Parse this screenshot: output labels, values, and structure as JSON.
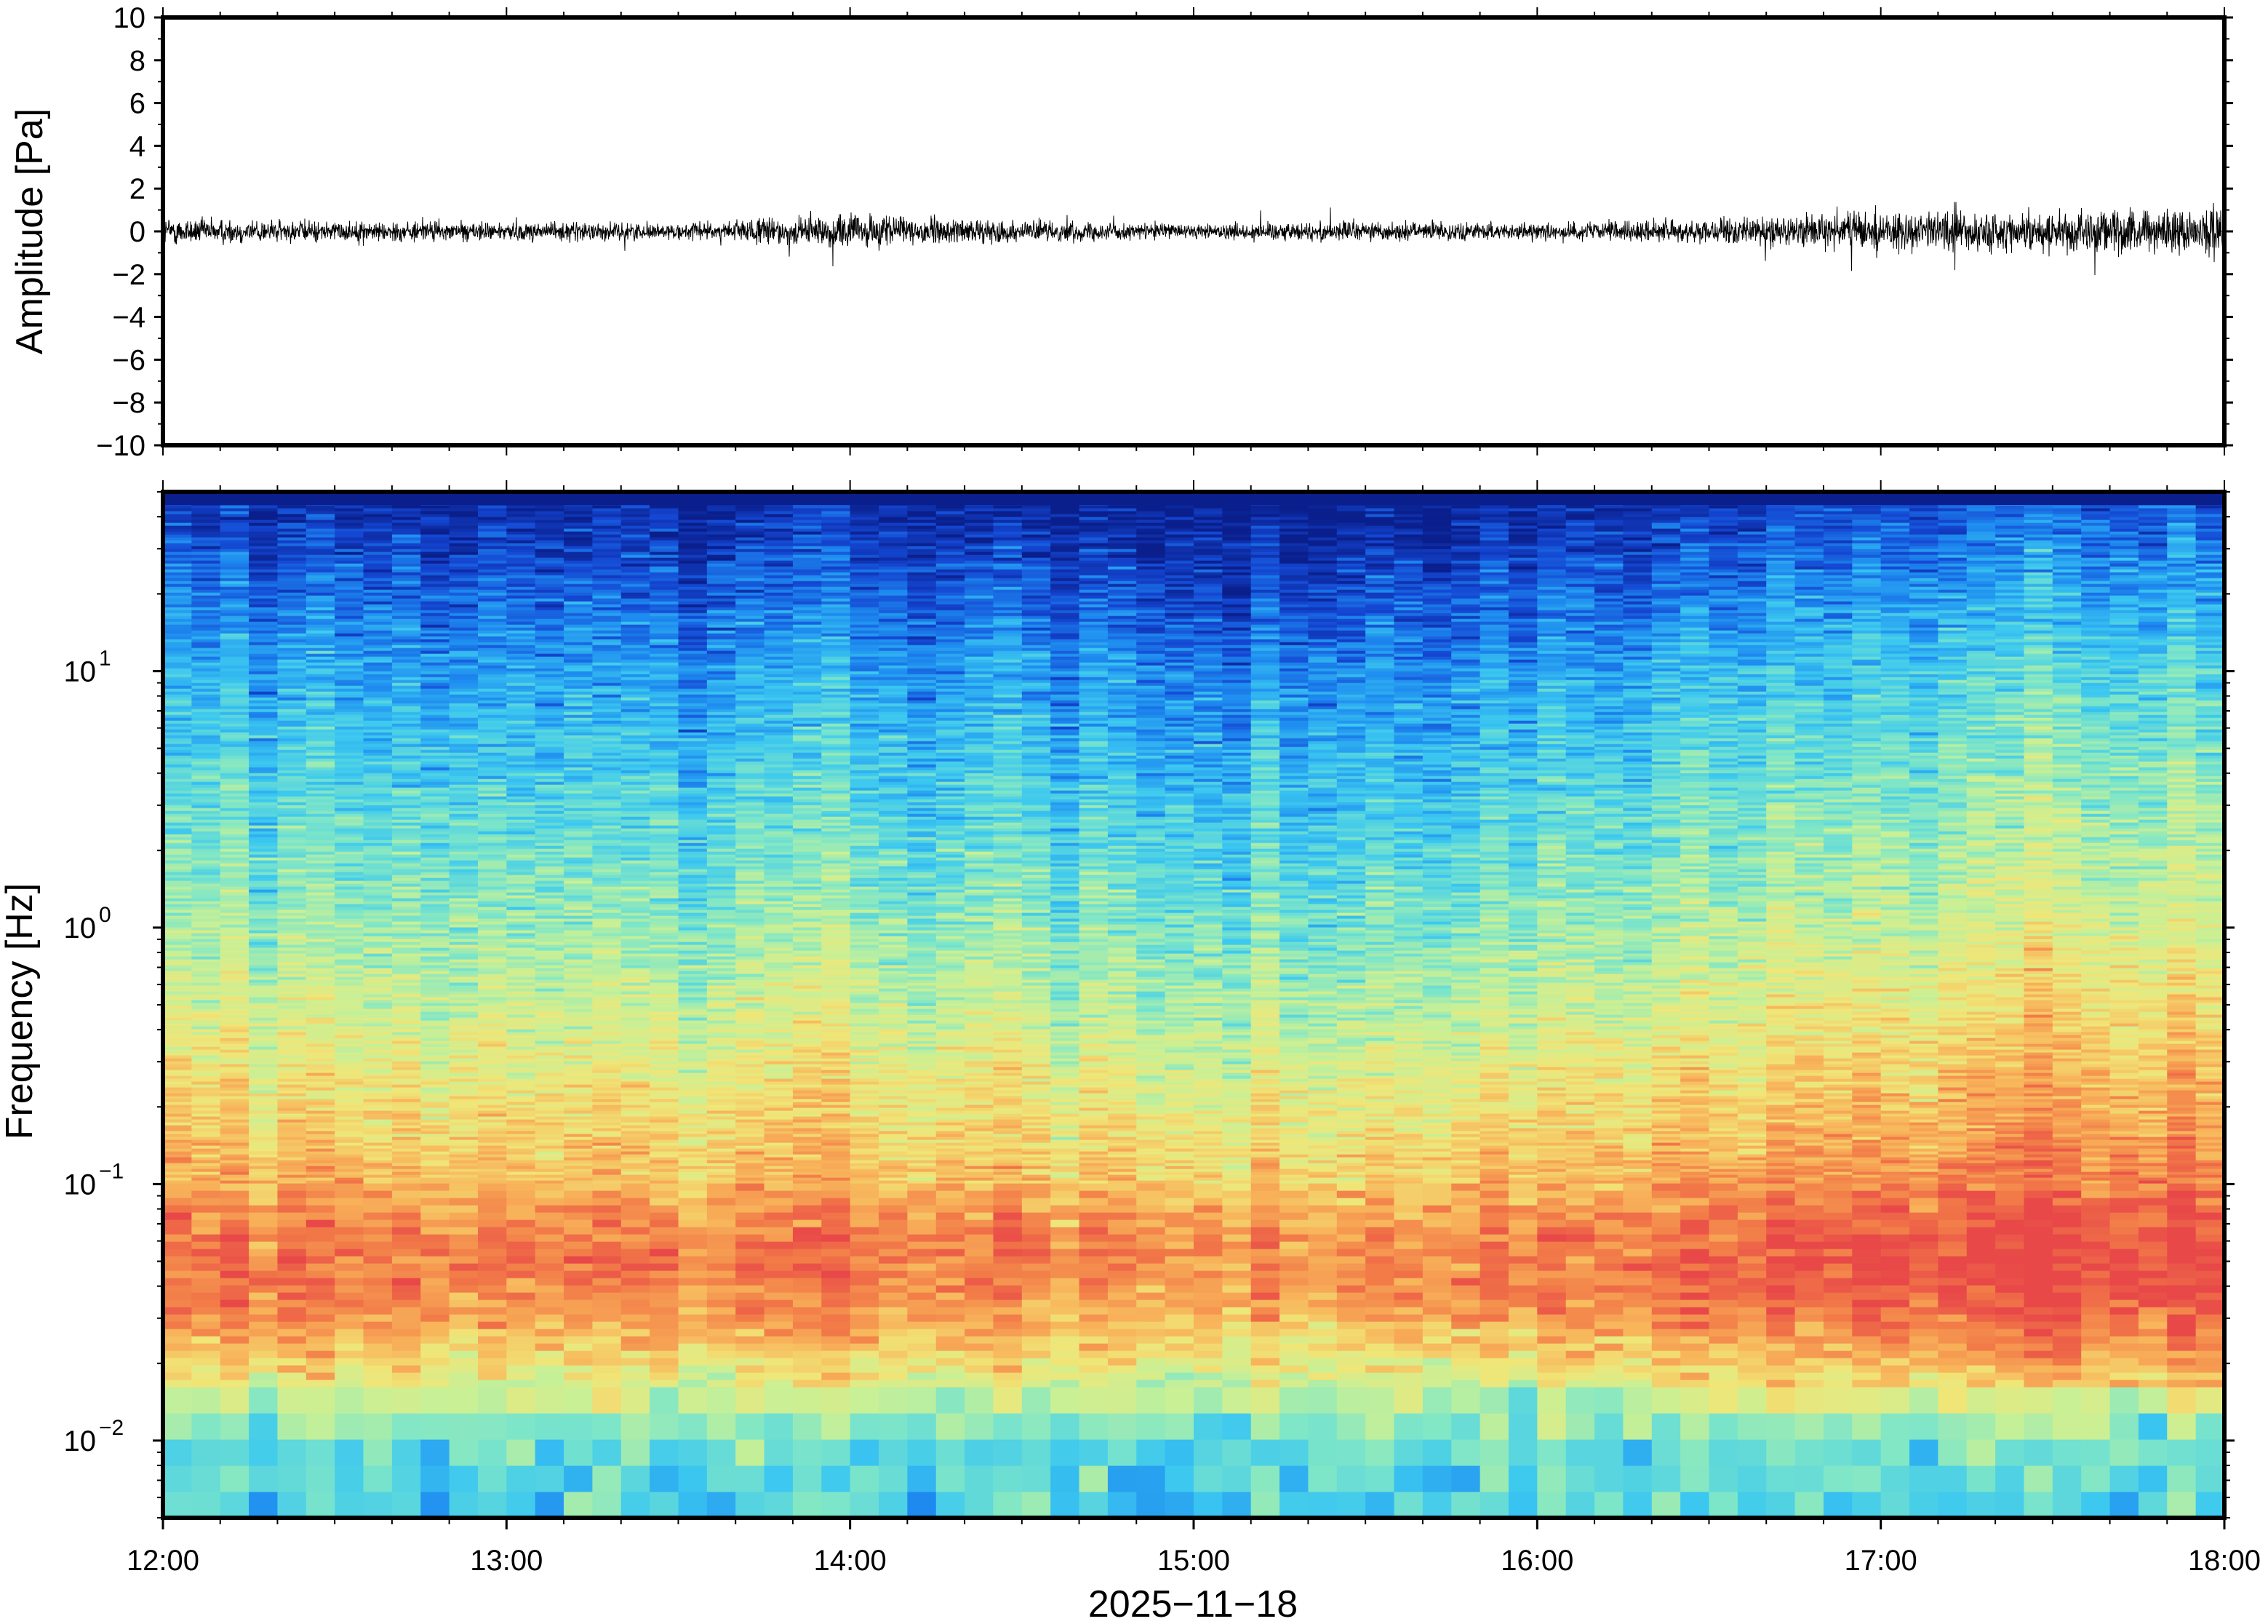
{
  "chart_data": [
    {
      "type": "line",
      "ylabel": "Amplitude [Pa]",
      "ylim": [
        -10,
        10
      ],
      "yticks": [
        -10,
        -8,
        -6,
        -4,
        -2,
        0,
        2,
        4,
        6,
        8,
        10
      ],
      "ytick_labels": [
        "−10",
        "−8",
        "−6",
        "−4",
        "−2",
        "0",
        "2",
        "4",
        "6",
        "8",
        "10"
      ],
      "x_range": [
        "12:00",
        "18:00"
      ],
      "grid": false,
      "series": [
        {
          "x": [
            "12:00",
            "12:30",
            "13:00",
            "13:30",
            "14:00",
            "14:30",
            "15:00",
            "15:30",
            "16:00",
            "16:30",
            "17:00",
            "17:30",
            "18:00"
          ],
          "envelope_max": [
            0.7,
            0.5,
            0.5,
            0.4,
            0.9,
            0.5,
            0.4,
            0.5,
            0.4,
            0.6,
            1.0,
            1.1,
            1.2
          ],
          "peak_max": [
            1.5,
            1.2,
            1.0,
            0.9,
            1.9,
            1.0,
            0.9,
            1.4,
            0.9,
            1.5,
            2.0,
            2.4,
            2.7
          ],
          "color": "#000000"
        }
      ]
    },
    {
      "type": "heatmap",
      "ylabel": "Frequency [Hz]",
      "xlabel": "2025−11−18",
      "y_scale": "log",
      "ylim": [
        0.005,
        50
      ],
      "ytick_values": [
        0.01,
        0.1,
        1,
        10
      ],
      "ytick_mantissa": [
        "10",
        "10",
        "10",
        "10"
      ],
      "ytick_exponent": [
        "−2",
        "−1",
        "0",
        "1"
      ],
      "xticks": [
        "12:00",
        "13:00",
        "14:00",
        "15:00",
        "16:00",
        "17:00",
        "18:00"
      ],
      "x_range_hours": [
        12,
        18
      ],
      "colormap": [
        "#0a1f8c",
        "#1446d2",
        "#1e8cf0",
        "#3cc8f0",
        "#7ee6c8",
        "#c8f096",
        "#f0e678",
        "#f8b45a",
        "#f27b48",
        "#e84848"
      ],
      "grid": false,
      "description_of_levels": {
        "high_freq_above_10Hz": "low power (dark blue / blue)",
        "band_1_to_10Hz": "medium-low (cyan / green)",
        "band_0.1_to_1Hz": "medium (yellow / orange)",
        "band_0.03_to_0.1Hz": "high (orange / red)",
        "below_0.02Hz": "medium-low (green / cyan)"
      },
      "time_activity_profile": {
        "hours": [
          12,
          12.5,
          13,
          13.5,
          14,
          14.5,
          15,
          15.5,
          16,
          16.5,
          17,
          17.5,
          18
        ],
        "relative_level": [
          0.55,
          0.45,
          0.4,
          0.35,
          0.45,
          0.3,
          0.2,
          0.3,
          0.35,
          0.55,
          0.75,
          0.85,
          0.8
        ]
      }
    }
  ]
}
